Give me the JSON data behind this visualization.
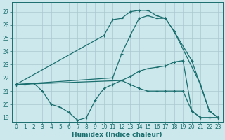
{
  "xlabel": "Humidex (Indice chaleur)",
  "bg_color": "#cce8ec",
  "grid_color": "#aac8d0",
  "line_color": "#1a6e6e",
  "xlim": [
    -0.5,
    23.5
  ],
  "ylim": [
    18.7,
    27.7
  ],
  "yticks": [
    19,
    20,
    21,
    22,
    23,
    24,
    25,
    26,
    27
  ],
  "xticks": [
    0,
    1,
    2,
    3,
    4,
    5,
    6,
    7,
    8,
    9,
    10,
    11,
    12,
    13,
    14,
    15,
    16,
    17,
    18,
    19,
    20,
    21,
    22,
    23
  ],
  "lines": [
    {
      "x": [
        0,
        10,
        11,
        12,
        13,
        14,
        15,
        16,
        17,
        18,
        21,
        22,
        23
      ],
      "y": [
        21.5,
        25.2,
        26.4,
        26.5,
        27.0,
        27.1,
        27.1,
        26.7,
        26.5,
        25.5,
        21.5,
        19.5,
        19.0
      ]
    },
    {
      "x": [
        0,
        11,
        12,
        13,
        14,
        15,
        16,
        17,
        18,
        20,
        22,
        23
      ],
      "y": [
        21.5,
        22.0,
        23.8,
        25.2,
        26.5,
        26.7,
        26.5,
        26.5,
        25.5,
        23.3,
        19.5,
        19.0
      ]
    },
    {
      "x": [
        0,
        12,
        13,
        14,
        15,
        16,
        17,
        18,
        19,
        20,
        21,
        22,
        23
      ],
      "y": [
        21.5,
        21.8,
        22.1,
        22.5,
        22.7,
        22.8,
        22.9,
        23.2,
        23.3,
        19.5,
        19.0,
        19.0,
        19.0
      ]
    },
    {
      "x": [
        0,
        1,
        2,
        3,
        4,
        5,
        6,
        7,
        8,
        9,
        10,
        11,
        12,
        13,
        14,
        15,
        16,
        17,
        18,
        19,
        20,
        21,
        22,
        23
      ],
      "y": [
        21.5,
        21.5,
        21.6,
        21.0,
        20.0,
        19.8,
        19.4,
        18.8,
        19.0,
        20.3,
        21.2,
        21.5,
        21.8,
        21.5,
        21.2,
        21.0,
        21.0,
        21.0,
        21.0,
        21.0,
        19.5,
        19.0,
        19.0,
        19.0
      ]
    }
  ]
}
